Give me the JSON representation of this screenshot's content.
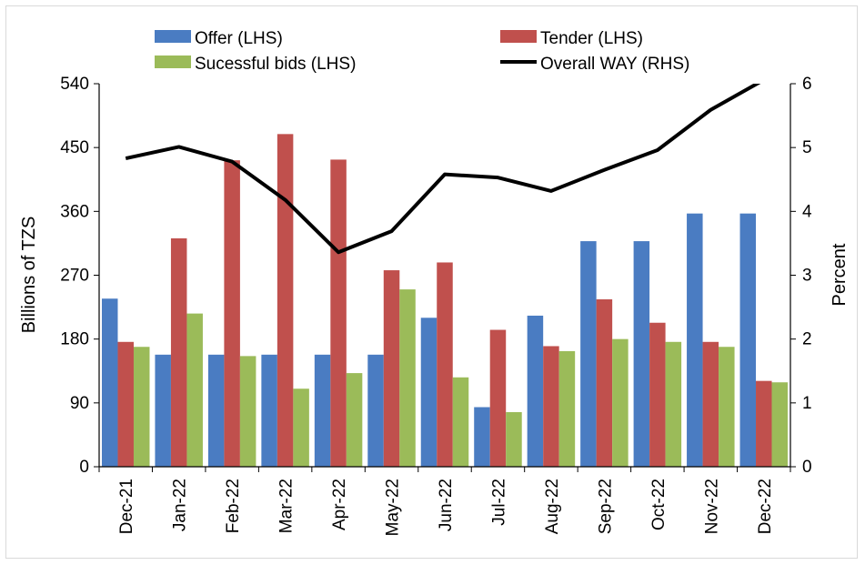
{
  "chart_data": {
    "type": "bar",
    "categories": [
      "Dec-21",
      "Jan-22",
      "Feb-22",
      "Mar-22",
      "Apr-22",
      "May-22",
      "Jun-22",
      "Jul-22",
      "Aug-22",
      "Sep-22",
      "Oct-22",
      "Nov-22",
      "Dec-22"
    ],
    "series": [
      {
        "name": "Offer (LHS)",
        "kind": "bar",
        "axis": "left",
        "color": "#4a7cc2",
        "values": [
          237,
          158,
          158,
          158,
          158,
          158,
          210,
          84,
          213,
          318,
          318,
          357,
          357
        ]
      },
      {
        "name": "Tender (LHS)",
        "kind": "bar",
        "axis": "left",
        "color": "#c0504d",
        "values": [
          176,
          322,
          432,
          469,
          433,
          277,
          288,
          193,
          170,
          236,
          203,
          176,
          121
        ]
      },
      {
        "name": "Sucessful bids (LHS)",
        "kind": "bar",
        "axis": "left",
        "color": "#9bbb59",
        "values": [
          169,
          216,
          156,
          110,
          132,
          250,
          126,
          77,
          163,
          180,
          176,
          169,
          119
        ]
      },
      {
        "name": "Overall WAY (RHS)",
        "kind": "line",
        "axis": "right",
        "color": "#000000",
        "values": [
          4.83,
          5.01,
          4.78,
          4.18,
          3.36,
          3.69,
          4.58,
          4.53,
          4.32,
          4.65,
          4.96,
          5.59,
          6.06
        ]
      }
    ],
    "ylabel": "Billions of TZS",
    "y2label": "Percent",
    "ylim": [
      0,
      540
    ],
    "yticks": [
      "0",
      "90",
      "180",
      "270",
      "360",
      "450",
      "540"
    ],
    "y2lim": [
      0,
      6
    ],
    "y2ticks": [
      "0",
      "1",
      "2",
      "3",
      "4",
      "5",
      "6"
    ],
    "grid": false,
    "legend_position": "top"
  }
}
